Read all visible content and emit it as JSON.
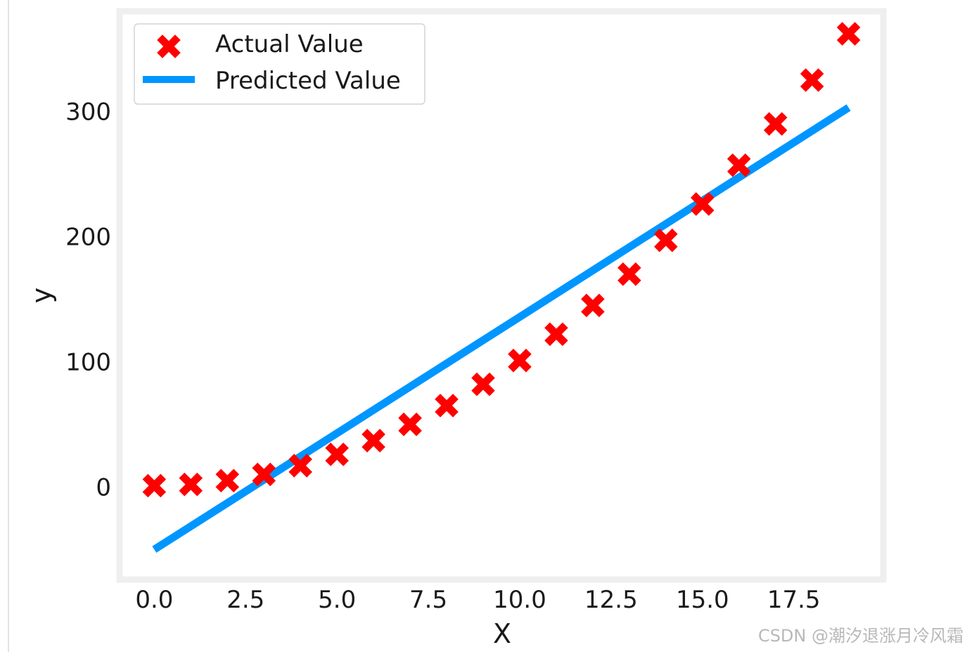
{
  "chart_data": {
    "type": "scatter",
    "title": "",
    "xlabel": "X",
    "ylabel": "y",
    "xlim": [
      -0.95,
      19.95
    ],
    "ylim": [
      -74,
      380
    ],
    "x_ticks": [
      0.0,
      2.5,
      5.0,
      7.5,
      10.0,
      12.5,
      15.0,
      17.5
    ],
    "x_tick_labels": [
      "0.0",
      "2.5",
      "5.0",
      "7.5",
      "10.0",
      "12.5",
      "15.0",
      "17.5"
    ],
    "y_ticks": [
      0,
      100,
      200,
      300
    ],
    "y_tick_labels": [
      "0",
      "100",
      "200",
      "300"
    ],
    "grid": false,
    "legend_position": "top-left",
    "series": [
      {
        "name": "Actual Value",
        "kind": "scatter",
        "marker": "X",
        "color": "#ff0000",
        "x": [
          0,
          1,
          2,
          3,
          4,
          5,
          6,
          7,
          8,
          9,
          10,
          11,
          12,
          13,
          14,
          15,
          16,
          17,
          18,
          19
        ],
        "y": [
          1,
          2,
          5,
          10,
          17,
          26,
          37,
          50,
          65,
          82,
          101,
          122,
          145,
          170,
          197,
          226,
          257,
          290,
          325,
          362
        ]
      },
      {
        "name": "Predicted Value",
        "kind": "line",
        "color": "#0096ff",
        "x": [
          0,
          19
        ],
        "y": [
          -50,
          303
        ]
      }
    ]
  },
  "watermark": "CSDN @潮汐退涨月冷风霜"
}
